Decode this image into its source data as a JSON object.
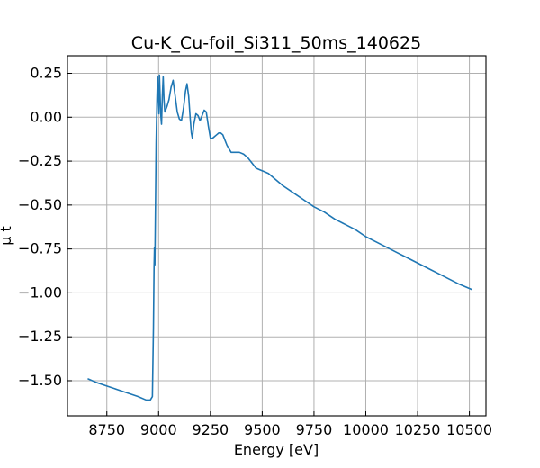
{
  "chart_data": {
    "type": "line",
    "title": "Cu-K_Cu-foil_Si311_50ms_140625",
    "xlabel": "Energy [eV]",
    "ylabel": "μ t",
    "xlim": [
      8560,
      10580
    ],
    "ylim": [
      -1.7,
      0.35
    ],
    "xticks": [
      8750,
      9000,
      9250,
      9500,
      9750,
      10000,
      10250,
      10500
    ],
    "yticks": [
      0.25,
      0.0,
      -0.25,
      -0.5,
      -0.75,
      -1.0,
      -1.25,
      -1.5
    ],
    "grid": true,
    "legend": "none",
    "series": [
      {
        "color": "#1f77b4",
        "points": [
          [
            8660,
            -1.49
          ],
          [
            8700,
            -1.51
          ],
          [
            8750,
            -1.53
          ],
          [
            8800,
            -1.55
          ],
          [
            8850,
            -1.57
          ],
          [
            8900,
            -1.59
          ],
          [
            8940,
            -1.61
          ],
          [
            8960,
            -1.61
          ],
          [
            8970,
            -1.59
          ],
          [
            8975,
            -1.2
          ],
          [
            8978,
            -0.85
          ],
          [
            8980,
            -0.74
          ],
          [
            8982,
            -0.84
          ],
          [
            8985,
            -0.5
          ],
          [
            8988,
            -0.15
          ],
          [
            8992,
            0.1
          ],
          [
            8995,
            0.23
          ],
          [
            8998,
            0.12
          ],
          [
            9001,
            0.02
          ],
          [
            9004,
            0.24
          ],
          [
            9007,
            0.13
          ],
          [
            9010,
            0.02
          ],
          [
            9014,
            -0.04
          ],
          [
            9018,
            0.12
          ],
          [
            9022,
            0.23
          ],
          [
            9026,
            0.1
          ],
          [
            9030,
            0.03
          ],
          [
            9040,
            0.06
          ],
          [
            9050,
            0.1
          ],
          [
            9060,
            0.17
          ],
          [
            9070,
            0.21
          ],
          [
            9080,
            0.12
          ],
          [
            9090,
            0.03
          ],
          [
            9100,
            -0.01
          ],
          [
            9110,
            -0.02
          ],
          [
            9120,
            0.05
          ],
          [
            9130,
            0.15
          ],
          [
            9137,
            0.19
          ],
          [
            9145,
            0.12
          ],
          [
            9152,
            0.0
          ],
          [
            9158,
            -0.09
          ],
          [
            9163,
            -0.12
          ],
          [
            9170,
            -0.04
          ],
          [
            9180,
            0.02
          ],
          [
            9190,
            0.01
          ],
          [
            9200,
            -0.02
          ],
          [
            9210,
            0.01
          ],
          [
            9220,
            0.04
          ],
          [
            9230,
            0.03
          ],
          [
            9240,
            -0.05
          ],
          [
            9250,
            -0.12
          ],
          [
            9260,
            -0.12
          ],
          [
            9270,
            -0.11
          ],
          [
            9280,
            -0.1
          ],
          [
            9290,
            -0.09
          ],
          [
            9300,
            -0.09
          ],
          [
            9310,
            -0.1
          ],
          [
            9320,
            -0.13
          ],
          [
            9330,
            -0.16
          ],
          [
            9340,
            -0.18
          ],
          [
            9350,
            -0.2
          ],
          [
            9370,
            -0.2
          ],
          [
            9390,
            -0.2
          ],
          [
            9410,
            -0.21
          ],
          [
            9430,
            -0.23
          ],
          [
            9450,
            -0.26
          ],
          [
            9470,
            -0.29
          ],
          [
            9490,
            -0.3
          ],
          [
            9510,
            -0.31
          ],
          [
            9530,
            -0.32
          ],
          [
            9560,
            -0.35
          ],
          [
            9600,
            -0.39
          ],
          [
            9650,
            -0.43
          ],
          [
            9700,
            -0.47
          ],
          [
            9750,
            -0.51
          ],
          [
            9800,
            -0.54
          ],
          [
            9850,
            -0.58
          ],
          [
            9900,
            -0.61
          ],
          [
            9950,
            -0.64
          ],
          [
            10000,
            -0.68
          ],
          [
            10050,
            -0.71
          ],
          [
            10100,
            -0.74
          ],
          [
            10150,
            -0.77
          ],
          [
            10200,
            -0.8
          ],
          [
            10250,
            -0.83
          ],
          [
            10300,
            -0.86
          ],
          [
            10350,
            -0.89
          ],
          [
            10400,
            -0.92
          ],
          [
            10450,
            -0.95
          ],
          [
            10510,
            -0.98
          ]
        ]
      }
    ]
  }
}
